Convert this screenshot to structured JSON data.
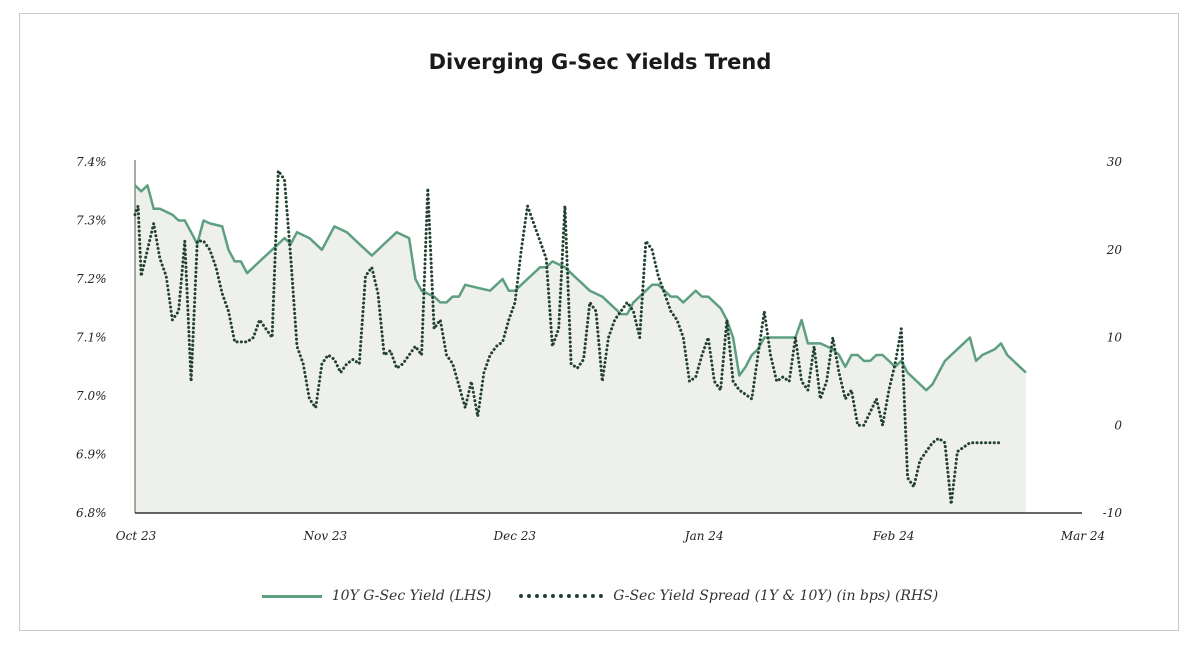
{
  "chart_data": {
    "type": "line",
    "title": "Diverging G-Sec Yields Trend",
    "x_ticks": [
      "Oct 23",
      "Nov 23",
      "Dec 23",
      "Jan 24",
      "Feb 24",
      "Mar 24"
    ],
    "x_range": [
      0,
      152
    ],
    "y_left": {
      "ticks": [
        "7.4%",
        "7.3%",
        "7.2%",
        "7.1%",
        "7.0%",
        "6.9%",
        "6.8%"
      ],
      "range": [
        6.8,
        7.4
      ]
    },
    "y_right": {
      "ticks": [
        "30",
        "20",
        "10",
        "0",
        "-10"
      ],
      "range": [
        -10,
        30
      ]
    },
    "series": [
      {
        "name": "10Y G-Sec Yield (LHS)",
        "axis": "left",
        "style": "solid",
        "color": "#5e9f82",
        "fill": "#eef0ec",
        "points": [
          [
            0,
            7.36
          ],
          [
            1,
            7.35
          ],
          [
            2,
            7.36
          ],
          [
            3,
            7.32
          ],
          [
            4,
            7.32
          ],
          [
            6,
            7.31
          ],
          [
            7,
            7.3
          ],
          [
            8,
            7.3
          ],
          [
            9,
            7.28
          ],
          [
            10,
            7.26
          ],
          [
            11,
            7.3
          ],
          [
            12,
            7.295
          ],
          [
            14,
            7.29
          ],
          [
            15,
            7.25
          ],
          [
            16,
            7.23
          ],
          [
            17,
            7.23
          ],
          [
            18,
            7.21
          ],
          [
            20,
            7.23
          ],
          [
            22,
            7.25
          ],
          [
            24,
            7.27
          ],
          [
            25,
            7.26
          ],
          [
            26,
            7.28
          ],
          [
            28,
            7.27
          ],
          [
            29,
            7.26
          ],
          [
            30,
            7.25
          ],
          [
            32,
            7.29
          ],
          [
            34,
            7.28
          ],
          [
            36,
            7.26
          ],
          [
            38,
            7.24
          ],
          [
            40,
            7.26
          ],
          [
            42,
            7.28
          ],
          [
            44,
            7.27
          ],
          [
            45,
            7.2
          ],
          [
            46,
            7.18
          ],
          [
            48,
            7.17
          ],
          [
            49,
            7.16
          ],
          [
            50,
            7.16
          ],
          [
            51,
            7.17
          ],
          [
            52,
            7.17
          ],
          [
            53,
            7.19
          ],
          [
            55,
            7.185
          ],
          [
            57,
            7.18
          ],
          [
            58,
            7.19
          ],
          [
            59,
            7.2
          ],
          [
            60,
            7.18
          ],
          [
            61,
            7.18
          ],
          [
            63,
            7.2
          ],
          [
            65,
            7.22
          ],
          [
            66,
            7.22
          ],
          [
            67,
            7.23
          ],
          [
            69,
            7.22
          ],
          [
            70,
            7.21
          ],
          [
            71,
            7.2
          ],
          [
            72,
            7.19
          ],
          [
            73,
            7.18
          ],
          [
            75,
            7.17
          ],
          [
            76,
            7.16
          ],
          [
            77,
            7.15
          ],
          [
            78,
            7.14
          ],
          [
            79,
            7.14
          ],
          [
            80,
            7.16
          ],
          [
            82,
            7.18
          ],
          [
            83,
            7.19
          ],
          [
            84,
            7.19
          ],
          [
            85,
            7.18
          ],
          [
            86,
            7.17
          ],
          [
            87,
            7.17
          ],
          [
            88,
            7.16
          ],
          [
            89,
            7.17
          ],
          [
            90,
            7.18
          ],
          [
            91,
            7.17
          ],
          [
            92,
            7.17
          ],
          [
            93,
            7.16
          ],
          [
            94,
            7.15
          ],
          [
            95,
            7.13
          ],
          [
            96,
            7.1
          ],
          [
            97,
            7.035
          ],
          [
            98,
            7.05
          ],
          [
            99,
            7.07
          ],
          [
            100,
            7.08
          ],
          [
            101,
            7.1
          ],
          [
            103,
            7.1
          ],
          [
            105,
            7.1
          ],
          [
            106,
            7.1
          ],
          [
            107,
            7.13
          ],
          [
            108,
            7.09
          ],
          [
            110,
            7.09
          ],
          [
            111,
            7.085
          ],
          [
            112,
            7.08
          ],
          [
            113,
            7.07
          ],
          [
            114,
            7.05
          ],
          [
            115,
            7.07
          ],
          [
            116,
            7.07
          ],
          [
            117,
            7.06
          ],
          [
            118,
            7.06
          ],
          [
            119,
            7.07
          ],
          [
            120,
            7.07
          ],
          [
            121,
            7.06
          ],
          [
            122,
            7.05
          ],
          [
            123,
            7.06
          ],
          [
            124,
            7.04
          ],
          [
            125,
            7.03
          ],
          [
            126,
            7.02
          ],
          [
            127,
            7.01
          ],
          [
            128,
            7.02
          ],
          [
            129,
            7.04
          ],
          [
            130,
            7.06
          ],
          [
            132,
            7.08
          ],
          [
            133,
            7.09
          ],
          [
            134,
            7.1
          ],
          [
            135,
            7.06
          ],
          [
            136,
            7.07
          ],
          [
            138,
            7.08
          ],
          [
            139,
            7.09
          ],
          [
            140,
            7.07
          ],
          [
            141,
            7.06
          ],
          [
            142,
            7.05
          ],
          [
            143,
            7.04
          ]
        ]
      },
      {
        "name": "G-Sec Yield Spread (1Y & 10Y) (in bps) (RHS)",
        "axis": "right",
        "style": "dotted",
        "color": "#23412f",
        "points": [
          [
            0,
            24
          ],
          [
            0.5,
            25
          ],
          [
            1,
            17
          ],
          [
            2,
            20
          ],
          [
            3,
            23
          ],
          [
            4,
            19
          ],
          [
            5,
            17
          ],
          [
            6,
            12
          ],
          [
            7,
            13
          ],
          [
            8,
            21
          ],
          [
            9,
            5
          ],
          [
            10,
            21
          ],
          [
            11,
            21
          ],
          [
            12,
            20
          ],
          [
            13,
            18
          ],
          [
            14,
            15
          ],
          [
            15,
            13
          ],
          [
            16,
            9.5
          ],
          [
            18,
            9.5
          ],
          [
            19,
            10
          ],
          [
            20,
            12
          ],
          [
            21,
            11
          ],
          [
            22,
            10
          ],
          [
            23,
            29
          ],
          [
            24,
            28
          ],
          [
            25,
            19
          ],
          [
            26,
            9
          ],
          [
            27,
            7
          ],
          [
            28,
            3
          ],
          [
            29,
            2
          ],
          [
            30,
            7
          ],
          [
            31,
            8
          ],
          [
            32,
            7.5
          ],
          [
            33,
            6
          ],
          [
            34,
            7
          ],
          [
            35,
            7.5
          ],
          [
            36,
            7
          ],
          [
            37,
            17
          ],
          [
            38,
            18
          ],
          [
            39,
            15
          ],
          [
            40,
            8
          ],
          [
            41,
            8.5
          ],
          [
            42,
            6.5
          ],
          [
            43,
            7
          ],
          [
            44,
            8
          ],
          [
            45,
            9
          ],
          [
            46,
            8
          ],
          [
            47,
            27
          ],
          [
            48,
            11
          ],
          [
            49,
            12
          ],
          [
            50,
            8
          ],
          [
            51,
            7
          ],
          [
            52,
            4.5
          ],
          [
            53,
            2
          ],
          [
            54,
            5
          ],
          [
            55,
            1
          ],
          [
            56,
            6
          ],
          [
            57,
            8
          ],
          [
            58,
            9
          ],
          [
            59,
            9.5
          ],
          [
            60,
            12
          ],
          [
            61,
            14
          ],
          [
            62,
            20
          ],
          [
            63,
            25
          ],
          [
            64,
            23
          ],
          [
            65,
            21
          ],
          [
            66,
            19
          ],
          [
            67,
            9
          ],
          [
            68,
            11
          ],
          [
            69,
            25
          ],
          [
            70,
            7
          ],
          [
            71,
            6.5
          ],
          [
            72,
            7.5
          ],
          [
            73,
            14
          ],
          [
            74,
            13
          ],
          [
            75,
            5
          ],
          [
            76,
            10
          ],
          [
            77,
            12
          ],
          [
            78,
            13
          ],
          [
            79,
            14
          ],
          [
            80,
            13
          ],
          [
            81,
            10
          ],
          [
            82,
            21
          ],
          [
            83,
            20
          ],
          [
            84,
            17
          ],
          [
            85,
            15
          ],
          [
            86,
            13
          ],
          [
            87,
            12
          ],
          [
            88,
            10
          ],
          [
            89,
            5
          ],
          [
            90,
            5.5
          ],
          [
            91,
            8
          ],
          [
            92,
            10
          ],
          [
            93,
            5
          ],
          [
            94,
            4
          ],
          [
            95,
            12
          ],
          [
            96,
            5
          ],
          [
            97,
            4
          ],
          [
            98,
            3.5
          ],
          [
            99,
            3
          ],
          [
            100,
            8
          ],
          [
            101,
            13
          ],
          [
            102,
            8
          ],
          [
            103,
            5
          ],
          [
            104,
            5.5
          ],
          [
            105,
            5
          ],
          [
            106,
            10
          ],
          [
            107,
            5
          ],
          [
            108,
            4
          ],
          [
            109,
            9
          ],
          [
            110,
            3
          ],
          [
            111,
            5
          ],
          [
            112,
            10
          ],
          [
            113,
            6
          ],
          [
            114,
            3
          ],
          [
            115,
            4
          ],
          [
            116,
            0
          ],
          [
            117,
            0
          ],
          [
            118,
            1.5
          ],
          [
            119,
            3
          ],
          [
            120,
            0
          ],
          [
            121,
            4
          ],
          [
            122,
            7
          ],
          [
            123,
            11
          ],
          [
            124,
            -6
          ],
          [
            125,
            -7
          ],
          [
            126,
            -4
          ],
          [
            127,
            -3
          ],
          [
            128,
            -2
          ],
          [
            129,
            -1.5
          ],
          [
            130,
            -2
          ],
          [
            131,
            -9
          ],
          [
            132,
            -3
          ],
          [
            133,
            -2.5
          ],
          [
            134,
            -2
          ],
          [
            136,
            -2
          ],
          [
            138,
            -2
          ],
          [
            139,
            -2
          ]
        ]
      }
    ]
  }
}
